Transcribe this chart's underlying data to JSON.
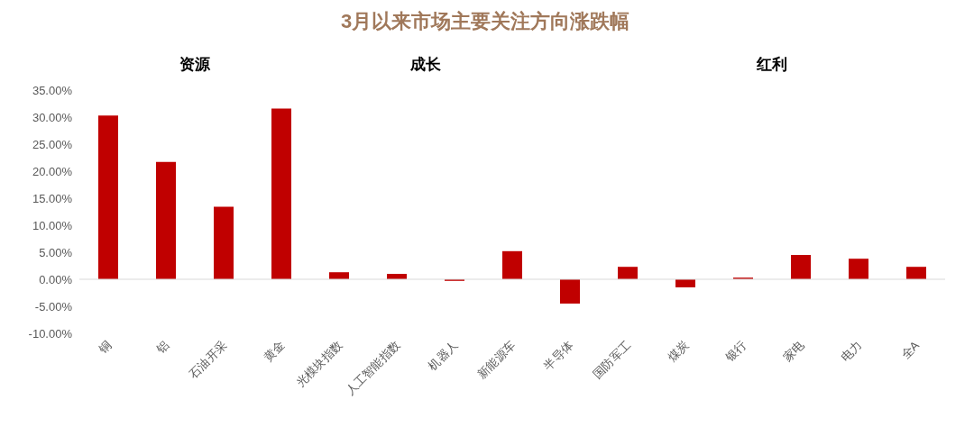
{
  "chart_data": {
    "type": "bar",
    "title": "3月以来市场主要关注方向涨跌幅",
    "categories": [
      "铜",
      "铝",
      "石油开采",
      "黄金",
      "光模块指数",
      "人工智能指数",
      "机器人",
      "新能源车",
      "半导体",
      "国防军工",
      "煤炭",
      "银行",
      "家电",
      "电力",
      "全A"
    ],
    "values": [
      30.3,
      21.7,
      13.4,
      31.6,
      1.3,
      1.0,
      -0.3,
      5.2,
      -4.5,
      2.3,
      -1.5,
      0.3,
      4.5,
      3.8,
      2.3
    ],
    "color": "#c00000",
    "ylim": [
      -10,
      35
    ],
    "yticks": [
      {
        "value": -10,
        "label": "-10.00%"
      },
      {
        "value": -5,
        "label": "-5.00%"
      },
      {
        "value": 0,
        "label": "0.00%"
      },
      {
        "value": 5,
        "label": "5.00%"
      },
      {
        "value": 10,
        "label": "10.00%"
      },
      {
        "value": 15,
        "label": "15.00%"
      },
      {
        "value": 20,
        "label": "20.00%"
      },
      {
        "value": 25,
        "label": "25.00%"
      },
      {
        "value": 30,
        "label": "30.00%"
      },
      {
        "value": 35,
        "label": "35.00%"
      }
    ],
    "ref_lines": [
      {
        "axis": "y",
        "value": 0,
        "color": "#d9d9d9"
      }
    ],
    "annotations": [
      "资源",
      "成长",
      "红利"
    ],
    "grid": false,
    "legend": false
  }
}
